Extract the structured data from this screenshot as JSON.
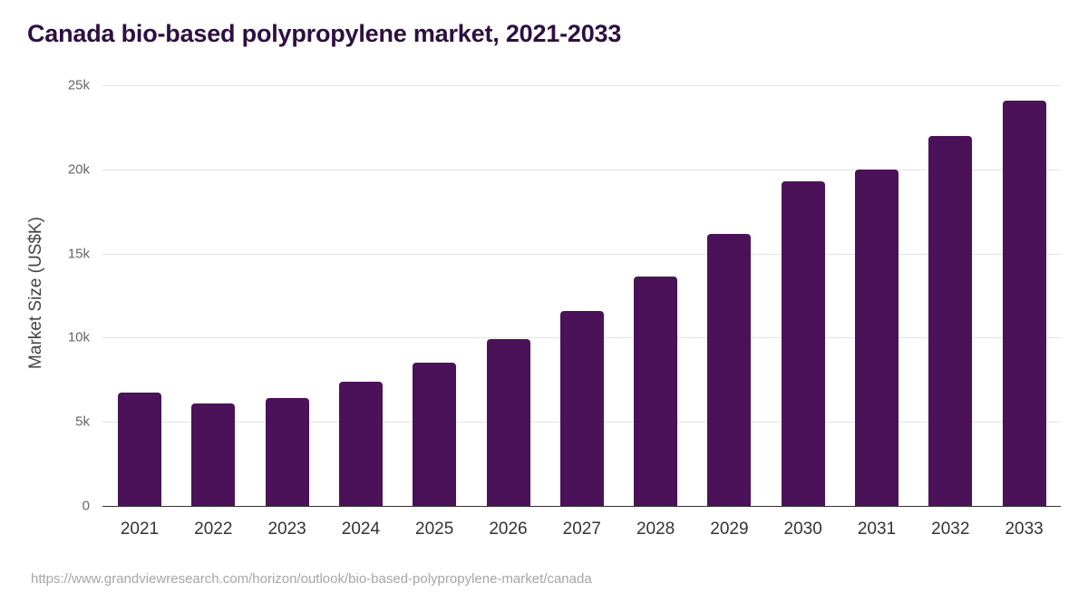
{
  "chart_data": {
    "type": "bar",
    "title": "Canada bio-based polypropylene market, 2021-2033",
    "xlabel": "",
    "ylabel": "Market Size (US$K)",
    "ylim": [
      0,
      25000
    ],
    "yticks": [
      0,
      5000,
      10000,
      15000,
      20000,
      25000
    ],
    "ytick_labels": [
      "0",
      "5k",
      "10k",
      "15k",
      "20k",
      "25k"
    ],
    "grid": true,
    "legend": null,
    "categories": [
      "2021",
      "2022",
      "2023",
      "2024",
      "2025",
      "2026",
      "2027",
      "2028",
      "2029",
      "2030",
      "2031",
      "2032",
      "2033"
    ],
    "values": [
      6730,
      6090,
      6410,
      7380,
      8510,
      9910,
      11580,
      13630,
      16160,
      19290,
      19990,
      21980,
      24080
    ],
    "bar_color": "#4b1259"
  },
  "title": "Canada bio-based polypropylene market, 2021-2033",
  "ylabel": "Market Size (US$K)",
  "source": "https://www.grandviewresearch.com/horizon/outlook/bio-based-polypropylene-market/canada",
  "colors": {
    "title": "#2d0f41",
    "bar": "#4b1259",
    "grid": "#e4e4e4",
    "axis": "#333333"
  }
}
